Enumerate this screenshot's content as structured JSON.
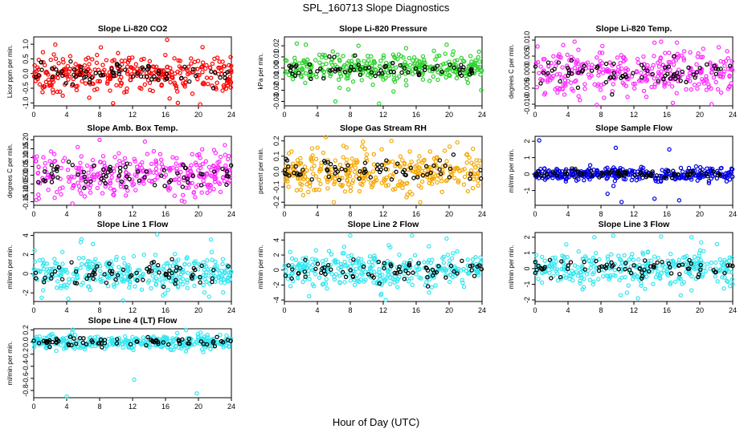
{
  "title": "SPL_160713  Slope Diagnostics",
  "xlabel": "Hour of Day (UTC)",
  "colors": {
    "red": "#ff0000",
    "green": "#2ed12e",
    "magenta": "#ff2bff",
    "orange": "#f5a800",
    "blue": "#0000e6",
    "cyan": "#33e6f0",
    "black": "#000000"
  },
  "chart_data": [
    {
      "type": "scatter",
      "title": "Slope Li-820 CO2",
      "ylabel": "Licor ppm per min.",
      "xlim": [
        0,
        24
      ],
      "xticks": [
        0,
        4,
        8,
        12,
        16,
        20,
        24
      ],
      "ylim": [
        -1.1,
        1.25
      ],
      "yticks": [
        -1.0,
        -0.5,
        0.0,
        0.5,
        1.0
      ],
      "ytick_labels": [
        "-1.0",
        "-0.5",
        "0.0",
        "0.5",
        "1.0"
      ],
      "color": "red",
      "spread": 0.3,
      "outliers": [
        [
          16.2,
          1.15
        ],
        [
          17.5,
          -1.0
        ],
        [
          16.5,
          -0.85
        ],
        [
          20.5,
          0.9
        ],
        [
          2.3,
          -0.55
        ]
      ]
    },
    {
      "type": "scatter",
      "title": "Slope Li-820 Pressure",
      "ylabel": "kPa per min.",
      "xlim": [
        0,
        24
      ],
      "xticks": [
        0,
        4,
        8,
        12,
        16,
        20,
        24
      ],
      "ylim": [
        -0.034,
        0.028
      ],
      "yticks": [
        -0.03,
        -0.02,
        -0.01,
        0.0,
        0.01,
        0.02
      ],
      "ytick_labels": [
        "-0.03",
        "-0.02",
        "-0.01",
        "0.00",
        "0.01",
        "0.02"
      ],
      "color": "green",
      "spread": 0.007,
      "outliers": [
        [
          11.5,
          -0.032
        ],
        [
          6.2,
          -0.03
        ],
        [
          1.5,
          0.022
        ],
        [
          2.6,
          0.021
        ],
        [
          19.7,
          0.021
        ],
        [
          9,
          0.02
        ],
        [
          23.9,
          -0.02
        ]
      ]
    },
    {
      "type": "scatter",
      "title": "Slope Li-820 Temp.",
      "ylabel": "degrees C per min.",
      "xlim": [
        0,
        24
      ],
      "xticks": [
        0,
        4,
        8,
        12,
        16,
        20,
        24
      ],
      "ylim": [
        -0.0105,
        0.011
      ],
      "yticks": [
        -0.01,
        -0.005,
        0.0,
        0.005,
        0.01
      ],
      "ytick_labels": [
        "-0.010",
        "-0.005",
        "0.000",
        "0.005",
        "0.010"
      ],
      "color": "magenta",
      "spread": 0.0035,
      "outliers": [
        [
          7.5,
          -0.0102
        ],
        [
          4.8,
          0.0095
        ],
        [
          14.5,
          0.0092
        ],
        [
          15.3,
          0.0095
        ],
        [
          0.3,
          0.008
        ]
      ]
    },
    {
      "type": "scatter",
      "title": "Slope Amb. Box Temp.",
      "ylabel": "degrees C per min.",
      "xlim": [
        0,
        24
      ],
      "xticks": [
        0,
        4,
        8,
        12,
        16,
        20,
        24
      ],
      "ylim": [
        -0.17,
        0.22
      ],
      "yticks": [
        -0.15,
        -0.1,
        -0.05,
        0.0,
        0.05,
        0.1,
        0.15,
        0.2
      ],
      "ytick_labels": [
        "-0.15",
        "-0.10",
        "-0.05",
        "0.00",
        "0.05",
        "0.10",
        "0.15",
        "0.20"
      ],
      "color": "magenta",
      "spread": 0.06,
      "outliers": [
        [
          8,
          0.2
        ],
        [
          13.5,
          0.19
        ],
        [
          4.7,
          -0.16
        ],
        [
          18.3,
          -0.15
        ],
        [
          23.2,
          0.17
        ]
      ]
    },
    {
      "type": "scatter",
      "title": "Slope Gas Stream RH",
      "ylabel": "percent per min.",
      "xlim": [
        0,
        24
      ],
      "xticks": [
        0,
        4,
        8,
        12,
        16,
        20,
        24
      ],
      "ylim": [
        -0.22,
        0.23
      ],
      "yticks": [
        -0.2,
        -0.1,
        0.0,
        0.1,
        0.2
      ],
      "ytick_labels": [
        "-0.2",
        "-0.1",
        "0.0",
        "0.1",
        "0.2"
      ],
      "color": "orange",
      "spread": 0.07,
      "outliers": [
        [
          13,
          0.2
        ],
        [
          16.5,
          -0.2
        ],
        [
          21,
          0.19
        ],
        [
          6,
          -0.2
        ]
      ]
    },
    {
      "type": "scatter",
      "title": "Slope Sample Flow",
      "ylabel": "ml/min per min.",
      "xlim": [
        0,
        24
      ],
      "xticks": [
        0,
        4,
        8,
        12,
        16,
        20,
        24
      ],
      "ylim": [
        -1.9,
        2.3
      ],
      "yticks": [
        -1,
        0,
        1,
        2
      ],
      "ytick_labels": [
        "-1",
        "0",
        "1",
        "2"
      ],
      "color": "blue",
      "spread": 0.2,
      "outliers": [
        [
          0.5,
          2.05
        ],
        [
          9.8,
          1.6
        ],
        [
          10.5,
          -1.7
        ],
        [
          16.3,
          1.5
        ],
        [
          17.5,
          -1.6
        ],
        [
          8.8,
          -1.2
        ],
        [
          14.5,
          -1.5
        ]
      ]
    },
    {
      "type": "scatter",
      "title": "Slope Line 1 Flow",
      "ylabel": "ml/min per min.",
      "xlim": [
        0,
        24
      ],
      "xticks": [
        0,
        4,
        8,
        12,
        16,
        20,
        24
      ],
      "ylim": [
        -2.9,
        4.3
      ],
      "yticks": [
        -2,
        0,
        2,
        4
      ],
      "ytick_labels": [
        "-2",
        "0",
        "2",
        "4"
      ],
      "color": "cyan",
      "spread": 0.9,
      "outliers": [
        [
          5.8,
          3.6
        ],
        [
          15,
          4.1
        ],
        [
          7.2,
          3.1
        ],
        [
          4.2,
          -2.6
        ],
        [
          21.3,
          -2.4
        ]
      ]
    },
    {
      "type": "scatter",
      "title": "Slope Line 2 Flow",
      "ylabel": "ml/min per min.",
      "xlim": [
        0,
        24
      ],
      "xticks": [
        0,
        4,
        8,
        12,
        16,
        20,
        24
      ],
      "ylim": [
        -4.2,
        5
      ],
      "yticks": [
        -4,
        -2,
        0,
        2,
        4
      ],
      "ytick_labels": [
        "-4",
        "-2",
        "0",
        "2",
        "4"
      ],
      "color": "cyan",
      "spread": 1.1,
      "outliers": [
        [
          8,
          4.6
        ],
        [
          12.3,
          -4
        ],
        [
          15.5,
          4.6
        ],
        [
          19.7,
          4.2
        ],
        [
          3,
          -3.5
        ]
      ]
    },
    {
      "type": "scatter",
      "title": "Slope Line 3 Flow",
      "ylabel": "ml/min per min.",
      "xlim": [
        0,
        24
      ],
      "xticks": [
        0,
        4,
        8,
        12,
        16,
        20,
        24
      ],
      "ylim": [
        -2.1,
        2.3
      ],
      "yticks": [
        -2,
        -1,
        0,
        1,
        2
      ],
      "ytick_labels": [
        "-2",
        "-1",
        "0",
        "1",
        "2"
      ],
      "color": "cyan",
      "spread": 0.55,
      "outliers": [
        [
          7.2,
          2
        ],
        [
          9.5,
          2.1
        ],
        [
          15.3,
          2.05
        ],
        [
          12.5,
          -1.9
        ],
        [
          10.4,
          -1.7
        ],
        [
          19,
          2
        ]
      ]
    },
    {
      "type": "scatter",
      "title": "Slope Line 4 (LT) Flow",
      "ylabel": "ml/min per min.",
      "xlim": [
        0,
        24
      ],
      "xticks": [
        0,
        4,
        8,
        12,
        16,
        20,
        24
      ],
      "ylim": [
        -0.92,
        0.22
      ],
      "yticks": [
        -0.8,
        -0.6,
        -0.4,
        -0.2,
        0.0,
        0.2
      ],
      "ytick_labels": [
        "-0.8",
        "-0.6",
        "-0.4",
        "-0.2",
        "0.0",
        "0.2"
      ],
      "color": "cyan",
      "spread": 0.06,
      "outliers": [
        [
          4,
          -0.9
        ],
        [
          19.8,
          -0.85
        ],
        [
          12.2,
          -0.62
        ],
        [
          18.5,
          0.2
        ]
      ]
    }
  ]
}
